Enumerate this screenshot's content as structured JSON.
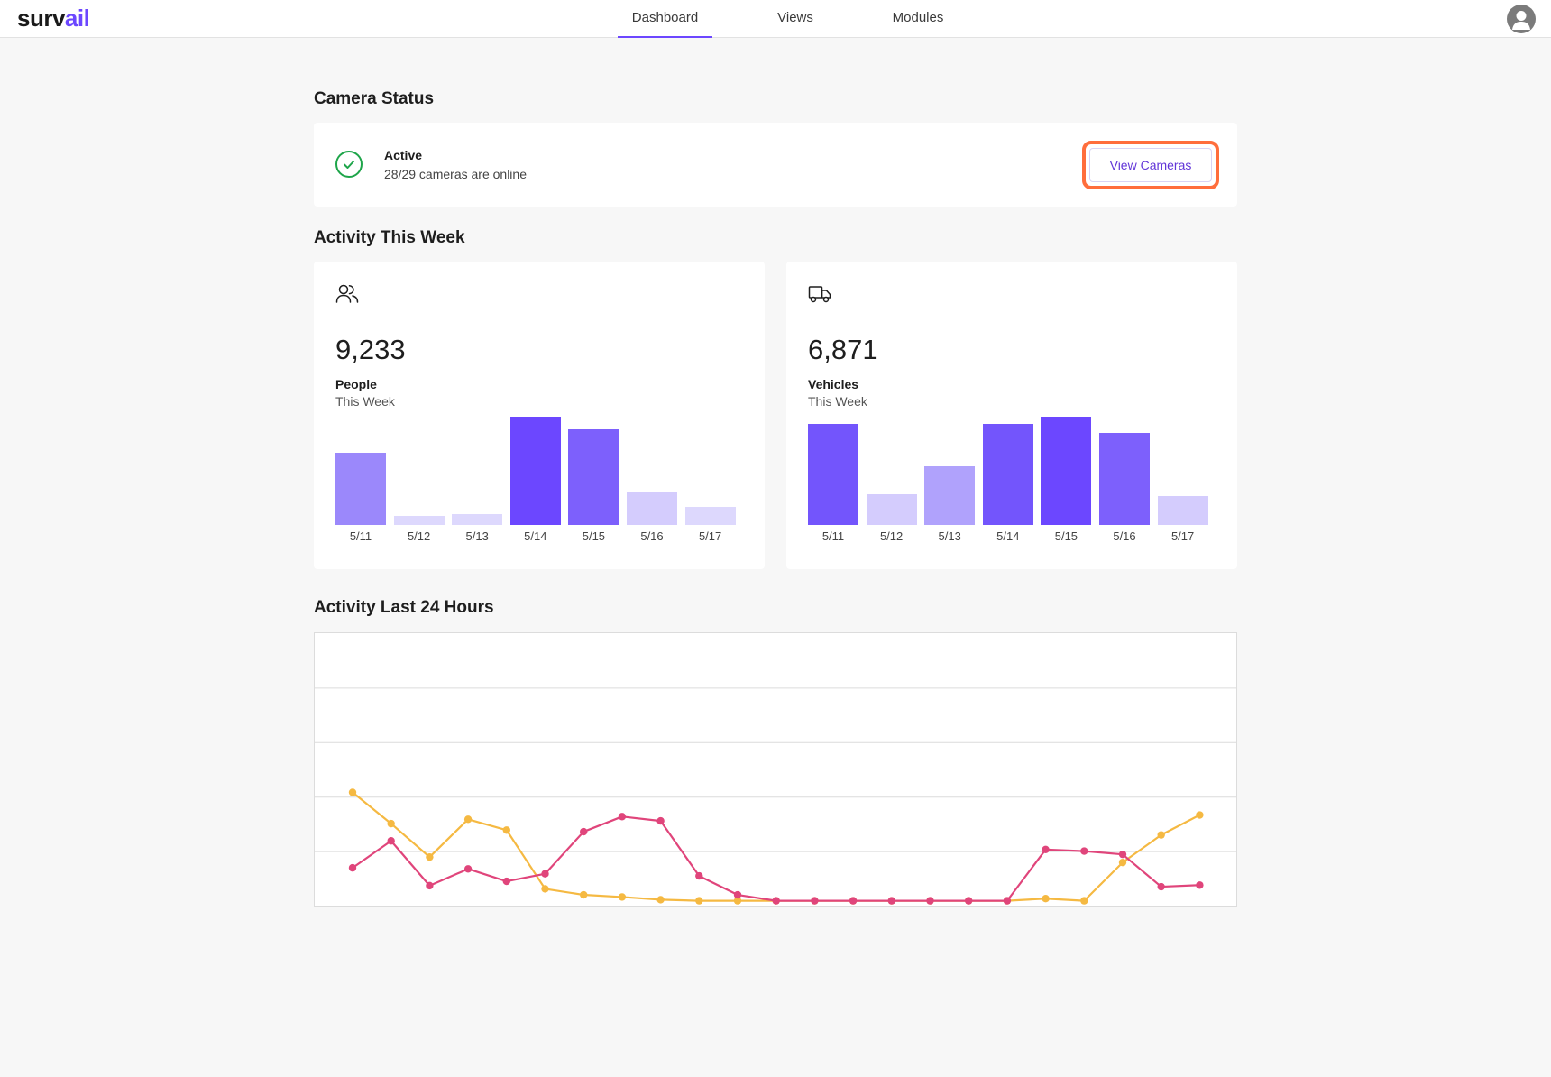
{
  "app": {
    "logo_main": "surv",
    "logo_accent": "ail",
    "accent_color": "#6c47ff"
  },
  "nav": {
    "tabs": [
      {
        "label": "Dashboard",
        "active": true
      },
      {
        "label": "Views",
        "active": false
      },
      {
        "label": "Modules",
        "active": false
      }
    ],
    "avatar_icon": "user-avatar-icon"
  },
  "camera_status": {
    "title": "Camera Status",
    "status": "Active",
    "detail": "28/29 cameras are online",
    "button_label": "View Cameras",
    "status_color": "#1ea54a"
  },
  "activity_week": {
    "title": "Activity This Week",
    "cards": [
      {
        "icon": "people-icon",
        "value": "9,233",
        "label": "People",
        "sub": "This Week"
      },
      {
        "icon": "truck-icon",
        "value": "6,871",
        "label": "Vehicles",
        "sub": "This Week"
      }
    ]
  },
  "activity_24h": {
    "title": "Activity Last 24 Hours"
  },
  "chart_data": [
    {
      "type": "bar",
      "categories": [
        "5/11",
        "5/12",
        "5/13",
        "5/14",
        "5/15",
        "5/16",
        "5/17"
      ],
      "values": [
        80,
        10,
        12,
        120,
        106,
        36,
        20
      ],
      "colors": [
        "#9b88fb",
        "#ddd8fd",
        "#ddd8fd",
        "#6c47ff",
        "#7d60fc",
        "#d4ccfd",
        "#ddd8fd"
      ],
      "ylim": [
        0,
        120
      ],
      "grid": false
    },
    {
      "type": "bar",
      "categories": [
        "5/11",
        "5/12",
        "5/13",
        "5/14",
        "5/15",
        "5/16",
        "5/17"
      ],
      "values": [
        112,
        34,
        65,
        112,
        120,
        102,
        32
      ],
      "colors": [
        "#7355fc",
        "#d4ccfd",
        "#b0a2fc",
        "#7355fc",
        "#6c47ff",
        "#7d60fc",
        "#d4ccfd"
      ],
      "ylim": [
        0,
        120
      ],
      "grid": false
    },
    {
      "type": "line",
      "x": [
        0,
        1,
        2,
        3,
        4,
        5,
        6,
        7,
        8,
        9,
        10,
        11,
        12,
        13,
        14,
        15,
        16,
        17,
        18,
        19,
        20,
        21,
        22
      ],
      "ylim": [
        0,
        50
      ],
      "grid": true,
      "series": [
        {
          "color": "#f5b942",
          "values": [
            20.5,
            14.7,
            8.5,
            15.5,
            13.5,
            2.6,
            1.5,
            1.1,
            0.6,
            0.4,
            0.4,
            0.4,
            0.4,
            0.4,
            0.4,
            0.4,
            0.4,
            0.4,
            0.8,
            0.4,
            7.5,
            12.6,
            16.3
          ]
        },
        {
          "color": "#e0457b",
          "values": [
            6.5,
            11.5,
            3.2,
            6.3,
            4.0,
            5.4,
            13.2,
            16.0,
            15.2,
            5.0,
            1.5,
            0.4,
            0.4,
            0.4,
            0.4,
            0.4,
            0.4,
            0.4,
            9.9,
            9.6,
            9.0,
            3.0,
            3.3
          ]
        }
      ]
    }
  ]
}
